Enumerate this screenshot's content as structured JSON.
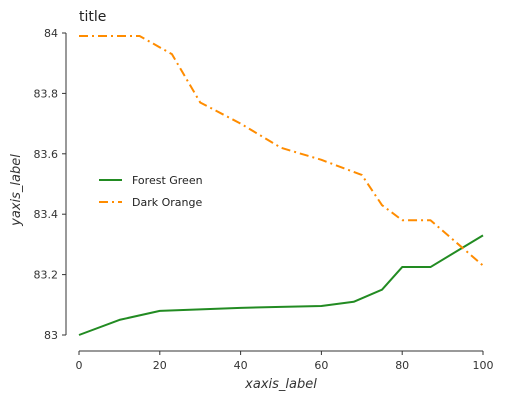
{
  "chart_data": {
    "type": "line",
    "title": "title",
    "xlabel": "xaxis_label",
    "ylabel": "yaxis_label",
    "xlim": [
      0,
      100
    ],
    "ylim": [
      83,
      84
    ],
    "xticks": [
      0,
      20,
      40,
      60,
      80,
      100
    ],
    "yticks": [
      83,
      83.2,
      83.4,
      83.6,
      83.8,
      84
    ],
    "xtick_labels": [
      "0",
      "20",
      "40",
      "60",
      "80",
      "100"
    ],
    "ytick_labels": [
      "83",
      "83.2",
      "83.4",
      "83.6",
      "83.8",
      "84"
    ],
    "grid": false,
    "legend_position": "center-left",
    "series": [
      {
        "name": "Forest Green",
        "color": "#228b22",
        "dash": "solid",
        "x": [
          0,
          10,
          20,
          30,
          40,
          50,
          60,
          68,
          75,
          80,
          87,
          100
        ],
        "y": [
          83.0,
          83.05,
          83.08,
          83.085,
          83.09,
          83.093,
          83.096,
          83.11,
          83.15,
          83.225,
          83.225,
          83.33
        ]
      },
      {
        "name": "Dark Orange",
        "color": "#ff8c00",
        "dash": "dashdot",
        "x": [
          0,
          15,
          23,
          30,
          40,
          50,
          60,
          70,
          75,
          80,
          87,
          100
        ],
        "y": [
          83.99,
          83.99,
          83.93,
          83.77,
          83.7,
          83.62,
          83.58,
          83.53,
          83.43,
          83.38,
          83.38,
          83.23
        ]
      }
    ]
  }
}
